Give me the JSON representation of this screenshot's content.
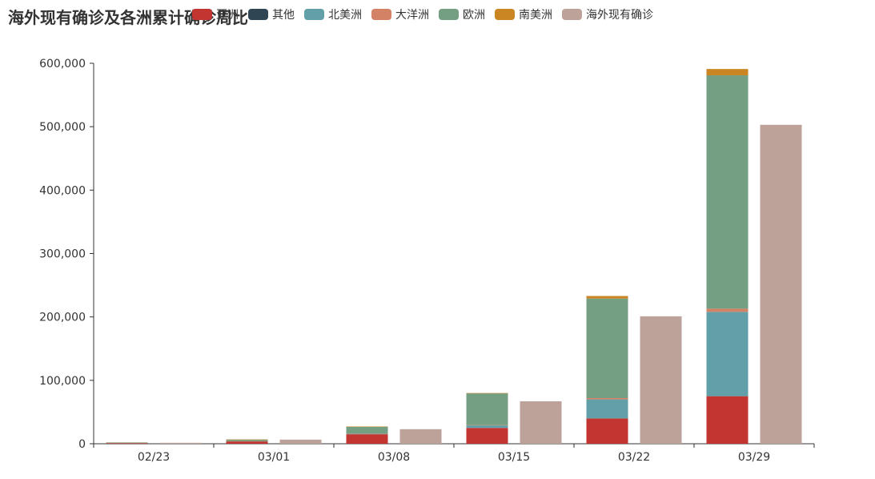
{
  "chart_data": {
    "type": "bar",
    "title": "海外现有确诊及各洲累计确诊周比",
    "categories": [
      "02/23",
      "03/01",
      "03/08",
      "03/15",
      "03/22",
      "03/29"
    ],
    "stacked_group": "累计确诊",
    "series": [
      {
        "name": "亚洲",
        "stack": "累计确诊",
        "color": "#c23531",
        "values": [
          1500,
          4000,
          15000,
          25000,
          40000,
          75000
        ]
      },
      {
        "name": "其他",
        "stack": "累计确诊",
        "color": "#2f4554",
        "values": [
          0,
          0,
          0,
          0,
          0,
          0
        ]
      },
      {
        "name": "北美洲",
        "stack": "累计确诊",
        "color": "#61a0a8",
        "values": [
          50,
          150,
          1000,
          4000,
          30000,
          133000
        ]
      },
      {
        "name": "大洋洲",
        "stack": "累计确诊",
        "color": "#d48265",
        "values": [
          30,
          50,
          100,
          500,
          2000,
          5000
        ]
      },
      {
        "name": "欧洲",
        "stack": "累计确诊",
        "color": "#749f83",
        "values": [
          500,
          2500,
          11000,
          50000,
          157000,
          368000
        ]
      },
      {
        "name": "南美洲",
        "stack": "累计确诊",
        "color": "#ca8622",
        "values": [
          0,
          10,
          100,
          500,
          4000,
          10000
        ]
      },
      {
        "name": "海外现有确诊",
        "stack": "现有确诊",
        "color": "#bda29a",
        "values": [
          1500,
          6500,
          23000,
          67000,
          201000,
          503000
        ]
      }
    ],
    "ylim": [
      0,
      600000
    ],
    "yticks": [
      "0",
      "100,000",
      "200,000",
      "300,000",
      "400,000",
      "500,000",
      "600,000"
    ],
    "ytick_values": [
      0,
      100000,
      200000,
      300000,
      400000,
      500000,
      600000
    ],
    "xlabel": "",
    "ylabel": "",
    "grid": false,
    "legend_position": "top"
  }
}
